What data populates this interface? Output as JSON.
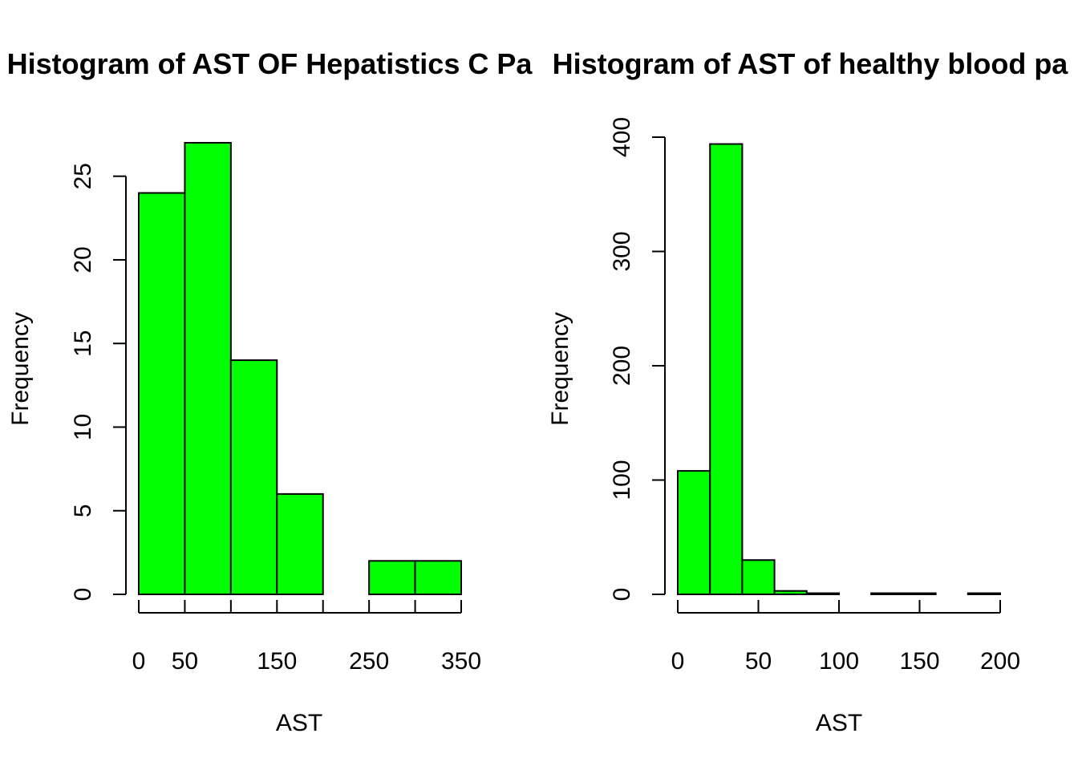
{
  "chart_data": [
    {
      "type": "bar",
      "title": "Histogram of AST OF Hepatistics C Pa",
      "xlabel": "AST",
      "ylabel": "Frequency",
      "bin_edges": [
        0,
        50,
        100,
        150,
        200,
        250,
        300,
        350
      ],
      "values": [
        24,
        27,
        14,
        6,
        0,
        2,
        2
      ],
      "xlim": [
        0,
        350
      ],
      "ylim": [
        0,
        27
      ],
      "x_ticks": [
        0,
        50,
        100,
        150,
        200,
        250,
        300,
        350
      ],
      "x_tick_labels": [
        "0",
        "50",
        "",
        "150",
        "",
        "250",
        "",
        "350"
      ],
      "y_ticks": [
        0,
        5,
        10,
        15,
        20,
        25
      ],
      "y_tick_labels": [
        "0",
        "5",
        "10",
        "15",
        "20",
        "25"
      ],
      "bar_color": "#00ff00",
      "grid": false
    },
    {
      "type": "bar",
      "title": "Histogram of AST of healthy blood pa",
      "xlabel": "AST",
      "ylabel": "Frequency",
      "bin_edges": [
        0,
        20,
        40,
        60,
        80,
        100,
        120,
        140,
        160,
        180,
        200
      ],
      "values": [
        108,
        394,
        30,
        3,
        1,
        0,
        1,
        1,
        0,
        1
      ],
      "xlim": [
        0,
        200
      ],
      "ylim": [
        0,
        400
      ],
      "x_ticks": [
        0,
        50,
        100,
        150,
        200
      ],
      "x_tick_labels": [
        "0",
        "50",
        "100",
        "150",
        "200"
      ],
      "y_ticks": [
        0,
        100,
        200,
        300,
        400
      ],
      "y_tick_labels": [
        "0",
        "100",
        "200",
        "300",
        "400"
      ],
      "bar_color": "#00ff00",
      "grid": false
    }
  ]
}
